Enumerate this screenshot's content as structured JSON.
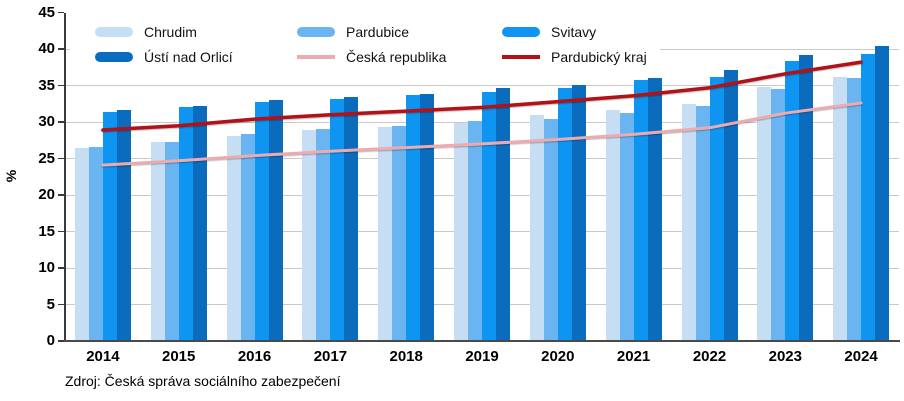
{
  "chart_data": {
    "type": "bar",
    "subtype": "grouped bars with overlaid lines",
    "title": "",
    "ylabel": "%",
    "xlabel": "",
    "ylim": [
      0,
      45
    ],
    "ytick_step": 5,
    "yticks": [
      "0",
      "5",
      "10",
      "15",
      "20",
      "25",
      "30",
      "35",
      "40",
      "45"
    ],
    "grid": "horizontal gridlines on",
    "legend_position": "top-left inside plot, 2 rows x 3 columns, white background",
    "categories": [
      "2014",
      "2015",
      "2016",
      "2017",
      "2018",
      "2019",
      "2020",
      "2021",
      "2022",
      "2023",
      "2024"
    ],
    "bar_series": [
      {
        "name": "Chrudim",
        "color": "#c6def3",
        "values": [
          26.4,
          27.3,
          28.1,
          28.9,
          29.3,
          29.9,
          31.0,
          31.7,
          32.5,
          34.8,
          36.2
        ]
      },
      {
        "name": "Pardubice",
        "color": "#6ab4f1",
        "values": [
          26.6,
          27.3,
          28.3,
          29.1,
          29.5,
          30.1,
          30.4,
          31.2,
          32.2,
          34.5,
          36.0
        ]
      },
      {
        "name": "Svitavy",
        "color": "#0e95f2",
        "values": [
          31.4,
          32.0,
          32.7,
          33.2,
          33.7,
          34.1,
          34.7,
          35.7,
          36.2,
          38.4,
          39.3
        ]
      },
      {
        "name": "Ústí nad Orlicí",
        "color": "#0b6cbd",
        "values": [
          31.7,
          32.2,
          33.0,
          33.5,
          33.8,
          34.6,
          35.1,
          36.1,
          37.1,
          39.2,
          40.4
        ]
      }
    ],
    "line_series": [
      {
        "name": "Česká republika",
        "color": "#eeabaf",
        "stroke_width": 3,
        "values": [
          24.1,
          24.7,
          25.4,
          26.0,
          26.5,
          27.0,
          27.6,
          28.3,
          29.2,
          31.2,
          32.6
        ]
      },
      {
        "name": "Pardubický kraj",
        "color": "#b11218",
        "stroke_width": 3.5,
        "values": [
          28.9,
          29.5,
          30.4,
          31.0,
          31.5,
          32.0,
          32.8,
          33.6,
          34.7,
          36.6,
          38.2
        ]
      }
    ],
    "source_note": "Zdroj: Česká správa sociálního zabezpečení"
  }
}
